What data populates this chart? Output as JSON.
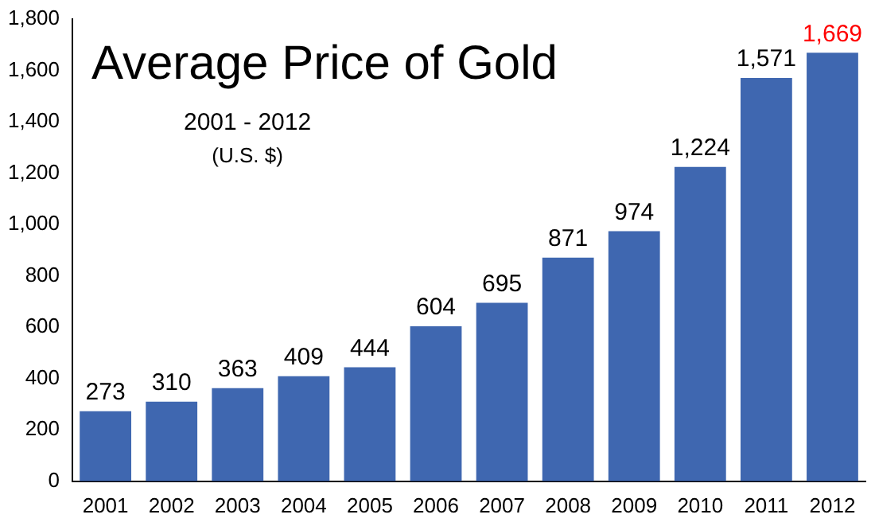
{
  "chart_data": {
    "type": "bar",
    "title": "Average Price of Gold",
    "subtitle": "2001 - 2012",
    "annotations": [
      "(U.S. $)"
    ],
    "categories": [
      "2001",
      "2002",
      "2003",
      "2004",
      "2005",
      "2006",
      "2007",
      "2008",
      "2009",
      "2010",
      "2011",
      "2012"
    ],
    "values": [
      273,
      310,
      363,
      409,
      444,
      604,
      695,
      871,
      974,
      1224,
      1571,
      1669
    ],
    "value_labels": [
      "273",
      "310",
      "363",
      "409",
      "444",
      "604",
      "695",
      "871",
      "974",
      "1,224",
      "1,571",
      "1,669"
    ],
    "color": "#3f67b0",
    "ylim": [
      0,
      1800
    ],
    "yticks": [
      0,
      {
        "value": 200,
        "label": "200"
      },
      {
        "value": 400,
        "label": "400"
      },
      {
        "value": 600,
        "label": "600"
      },
      {
        "value": 800,
        "label": "800"
      },
      {
        "value": 1000,
        "label": "1,000"
      },
      {
        "value": 1200,
        "label": "1,200"
      },
      {
        "value": 1400,
        "label": "1,400"
      },
      {
        "value": 1600,
        "label": "1,600"
      },
      {
        "value": 1800,
        "label": "1,800"
      }
    ],
    "grid": false,
    "legend": false
  }
}
